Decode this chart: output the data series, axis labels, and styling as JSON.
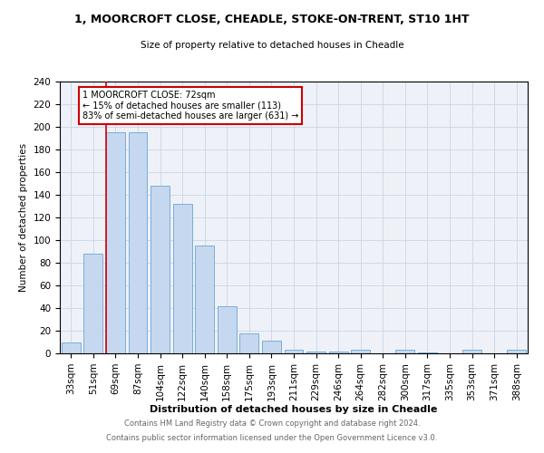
{
  "title": "1, MOORCROFT CLOSE, CHEADLE, STOKE-ON-TRENT, ST10 1HT",
  "subtitle": "Size of property relative to detached houses in Cheadle",
  "xlabel": "Distribution of detached houses by size in Cheadle",
  "ylabel": "Number of detached properties",
  "categories": [
    "33sqm",
    "51sqm",
    "69sqm",
    "87sqm",
    "104sqm",
    "122sqm",
    "140sqm",
    "158sqm",
    "175sqm",
    "193sqm",
    "211sqm",
    "229sqm",
    "246sqm",
    "264sqm",
    "282sqm",
    "300sqm",
    "317sqm",
    "335sqm",
    "353sqm",
    "371sqm",
    "388sqm"
  ],
  "values": [
    10,
    88,
    195,
    195,
    148,
    132,
    95,
    42,
    18,
    11,
    3,
    2,
    2,
    3,
    0,
    3,
    1,
    0,
    3,
    0,
    3
  ],
  "bar_color": "#c5d8f0",
  "bar_edge_color": "#7aaed6",
  "grid_color": "#d0d8e8",
  "bg_color": "#eef2f8",
  "property_line_index": 2,
  "property_line_color": "#cc0000",
  "annotation_line1": "1 MOORCROFT CLOSE: 72sqm",
  "annotation_line2": "← 15% of detached houses are smaller (113)",
  "annotation_line3": "83% of semi-detached houses are larger (631) →",
  "annotation_box_color": "#cc0000",
  "footer1": "Contains HM Land Registry data © Crown copyright and database right 2024.",
  "footer2": "Contains public sector information licensed under the Open Government Licence v3.0.",
  "ylim": [
    0,
    240
  ],
  "yticks": [
    0,
    20,
    40,
    60,
    80,
    100,
    120,
    140,
    160,
    180,
    200,
    220,
    240
  ]
}
